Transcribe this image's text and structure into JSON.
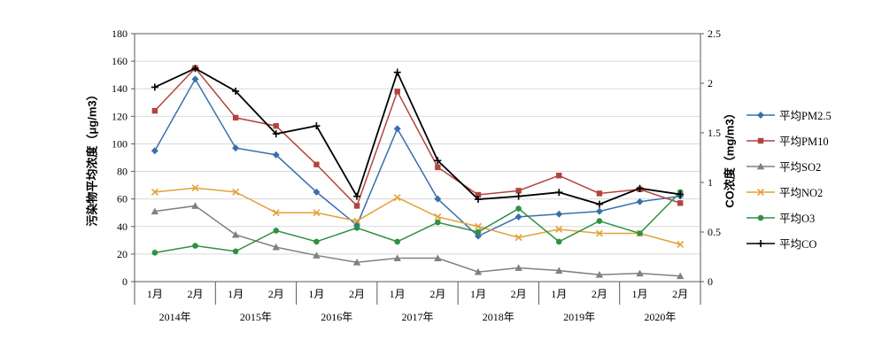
{
  "chart_data": {
    "type": "line",
    "title": "",
    "grid": true,
    "legend_position": "right",
    "x_axis": {
      "month_labels": [
        "1月",
        "2月",
        "1月",
        "2月",
        "1月",
        "2月",
        "1月",
        "2月",
        "1月",
        "2月",
        "1月",
        "2月",
        "1月",
        "2月"
      ],
      "year_labels": [
        "2014年",
        "2015年",
        "2016年",
        "2017年",
        "2018年",
        "2019年",
        "2020年"
      ]
    },
    "y_left": {
      "label": "污染物平均浓度（μg/m3）",
      "min": 0,
      "max": 180,
      "step": 20,
      "ticks": [
        0,
        20,
        40,
        60,
        80,
        100,
        120,
        140,
        160,
        180
      ]
    },
    "y_right": {
      "label": "CO浓度（mg/m3）",
      "min": 0,
      "max": 2.5,
      "step": 0.5,
      "ticks": [
        "0",
        "0.5",
        "1",
        "1.5",
        "2",
        "2.5"
      ]
    },
    "series": [
      {
        "name": "平均PM2.5",
        "axis": "left",
        "color": "#3a6fae",
        "marker": "diamond",
        "values": [
          95,
          147,
          97,
          92,
          65,
          41,
          111,
          60,
          33,
          47,
          49,
          51,
          58,
          62
        ]
      },
      {
        "name": "平均PM10",
        "axis": "left",
        "color": "#b0453e",
        "marker": "square",
        "values": [
          124,
          155,
          119,
          113,
          85,
          55,
          138,
          83,
          63,
          66,
          77,
          64,
          67,
          57
        ]
      },
      {
        "name": "平均SO2",
        "axis": "left",
        "color": "#808080",
        "marker": "triangle",
        "values": [
          51,
          55,
          34,
          25,
          19,
          14,
          17,
          17,
          7,
          10,
          8,
          5,
          6,
          4
        ]
      },
      {
        "name": "平均NO2",
        "axis": "left",
        "color": "#e2a23a",
        "marker": "x",
        "values": [
          65,
          68,
          65,
          50,
          50,
          44,
          61,
          47,
          40,
          32,
          38,
          35,
          35,
          27
        ]
      },
      {
        "name": "平均O3",
        "axis": "left",
        "color": "#2f9140",
        "marker": "circle",
        "values": [
          21,
          26,
          22,
          37,
          29,
          39,
          29,
          43,
          36,
          53,
          29,
          44,
          35,
          65
        ]
      },
      {
        "name": "平均CO",
        "axis": "right",
        "color": "#000000",
        "marker": "plus",
        "values": [
          1.96,
          2.15,
          1.92,
          1.49,
          1.57,
          0.86,
          2.11,
          1.22,
          0.83,
          0.86,
          0.9,
          0.78,
          0.94,
          0.88
        ]
      }
    ]
  }
}
